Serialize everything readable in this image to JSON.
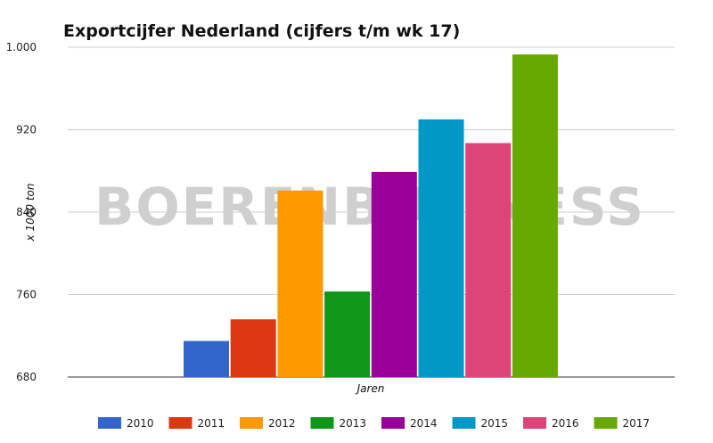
{
  "chart_data": {
    "type": "bar",
    "title": "Exportcijfer Nederland (cijfers t/m wk 17)",
    "xlabel": "Jaren",
    "ylabel": "x 1000 ton",
    "ylim": [
      680,
      1000
    ],
    "yticks": [
      680,
      760,
      840,
      920,
      1000
    ],
    "ytick_labels": [
      "680",
      "760",
      "840",
      "920",
      "1.000"
    ],
    "grid": true,
    "legend_position": "bottom",
    "watermark": "BOERENBUSINESS",
    "series": [
      {
        "name": "2010",
        "value": 715,
        "color": "#3366cc"
      },
      {
        "name": "2011",
        "value": 736,
        "color": "#dc3912"
      },
      {
        "name": "2012",
        "value": 861,
        "color": "#ff9900"
      },
      {
        "name": "2013",
        "value": 763,
        "color": "#109618"
      },
      {
        "name": "2014",
        "value": 879,
        "color": "#990099"
      },
      {
        "name": "2015",
        "value": 930,
        "color": "#0099c6"
      },
      {
        "name": "2016",
        "value": 907,
        "color": "#dd4477"
      },
      {
        "name": "2017",
        "value": 993,
        "color": "#66aa00"
      }
    ]
  }
}
